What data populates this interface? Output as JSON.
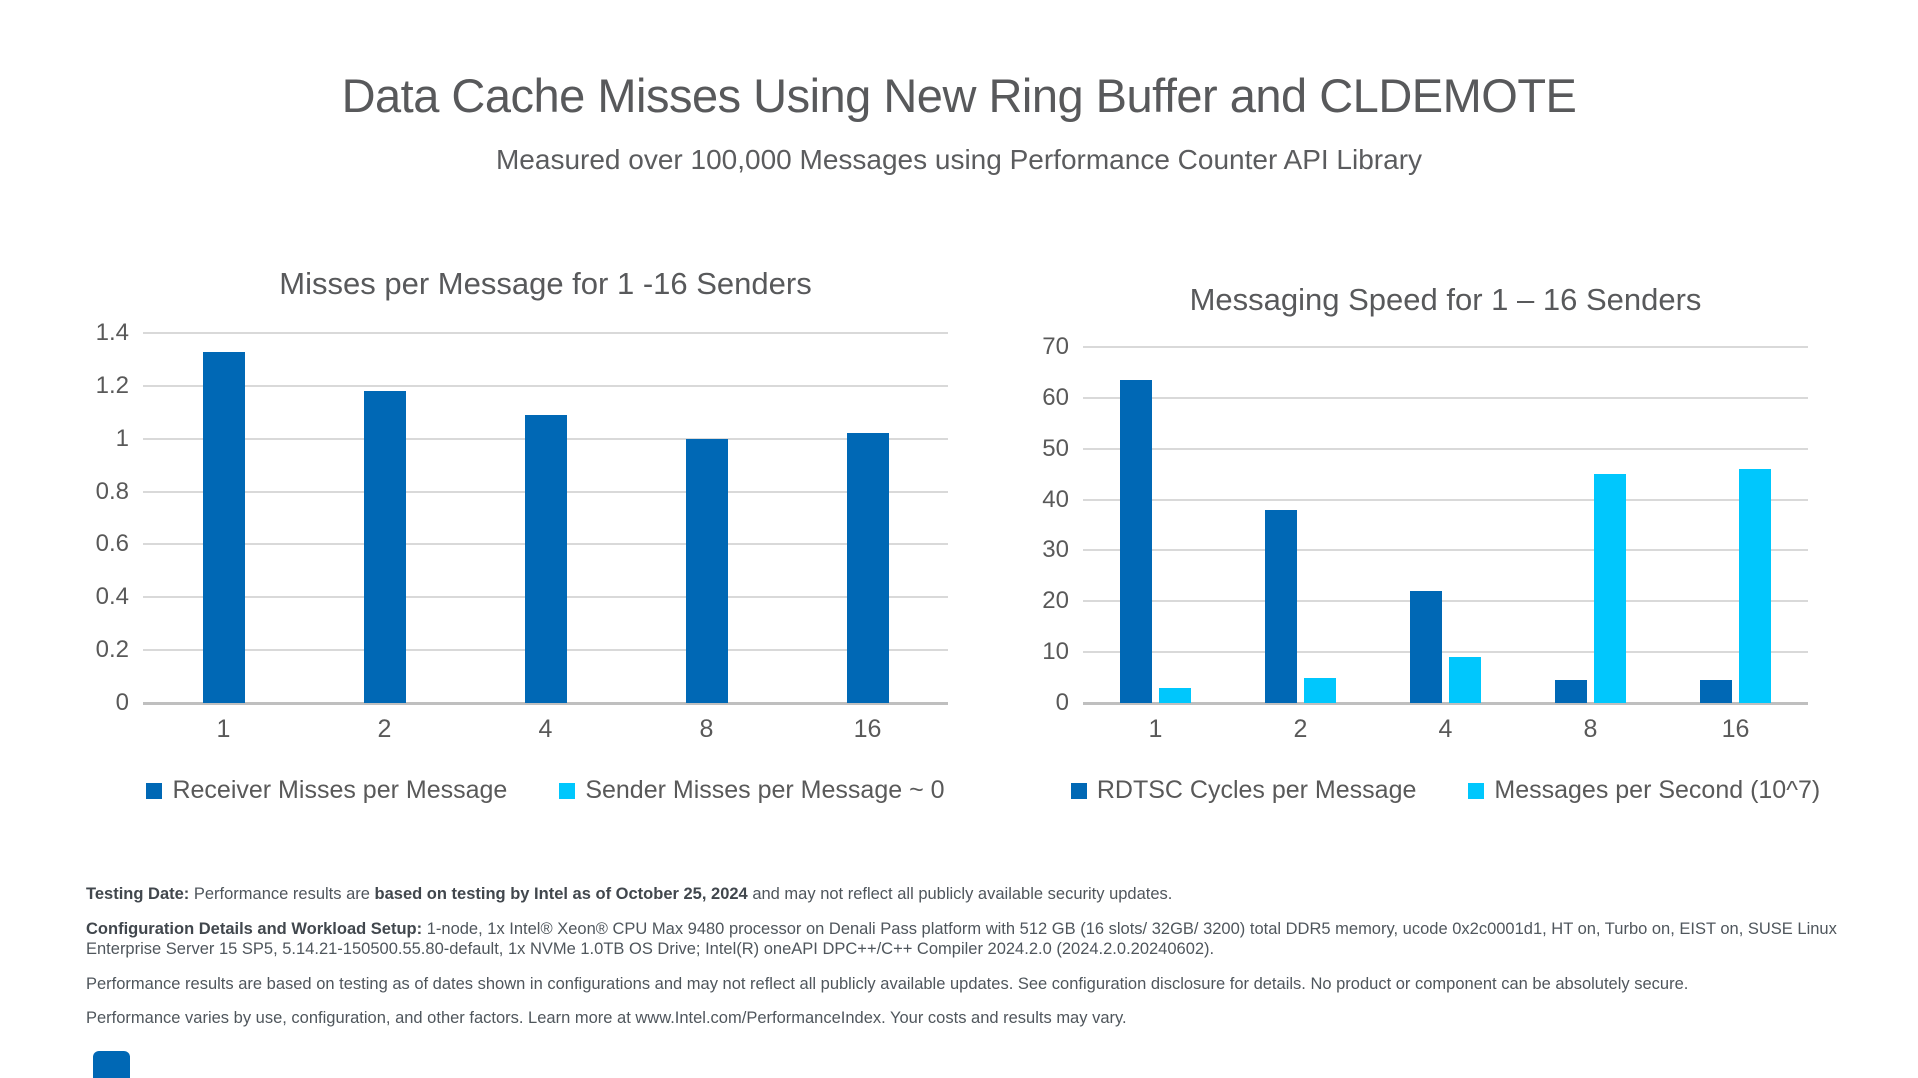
{
  "page": {
    "title": "Data Cache Misses Using New Ring Buffer and CLDEMOTE",
    "subtitle": "Measured over 100,000 Messages using Performance Counter API Library"
  },
  "colors": {
    "series_dark_blue": "#0068B5",
    "series_cyan": "#00C7FD",
    "intel_logo_blue": "#0068B5",
    "heading_gray": "#58595B"
  },
  "chart_data": [
    {
      "type": "bar",
      "title": "Misses per Message for 1 -16 Senders",
      "categories": [
        "1",
        "2",
        "4",
        "8",
        "16"
      ],
      "series": [
        {
          "name": "Receiver Misses per Message",
          "color": "#0068B5",
          "values": [
            1.33,
            1.18,
            1.09,
            1.0,
            1.02
          ]
        },
        {
          "name": "Sender Misses per Message ~ 0",
          "color": "#00C7FD",
          "values": [
            0,
            0,
            0,
            0,
            0
          ]
        }
      ],
      "xlabel": "",
      "ylabel": "",
      "ylim": [
        0,
        1.4
      ],
      "yticks": [
        "1.4",
        "1.2",
        "1",
        "0.8",
        "0.6",
        "0.4",
        "0.2",
        "0"
      ],
      "grid": true,
      "legend_position": "bottom"
    },
    {
      "type": "bar",
      "title": "Messaging Speed for 1 – 16 Senders",
      "categories": [
        "1",
        "2",
        "4",
        "8",
        "16"
      ],
      "series": [
        {
          "name": "RDTSC Cycles per Message",
          "color": "#0068B5",
          "values": [
            63.5,
            38,
            22,
            4.5,
            4.5
          ]
        },
        {
          "name": "Messages per Second (10^7)",
          "color": "#00C7FD",
          "values": [
            3,
            5,
            9,
            45,
            46
          ]
        }
      ],
      "xlabel": "",
      "ylabel": "",
      "ylim": [
        0,
        70
      ],
      "yticks": [
        "70",
        "60",
        "50",
        "40",
        "30",
        "20",
        "10",
        "0"
      ],
      "grid": true,
      "legend_position": "bottom"
    }
  ],
  "footer": {
    "paragraphs": [
      {
        "segments": [
          {
            "text": "Testing Date: ",
            "bold": true
          },
          {
            "text": "Performance results are ",
            "bold": false
          },
          {
            "text": "based on testing by Intel as of October 25, 2024",
            "bold": true
          },
          {
            "text": " and may not reflect all publicly available security updates.",
            "bold": false
          }
        ]
      },
      {
        "segments": [
          {
            "text": "Configuration Details and Workload Setup: ",
            "bold": true
          },
          {
            "text": "1-node, 1x Intel® Xeon® CPU Max 9480 processor on Denali Pass platform with 512 GB (16 slots/ 32GB/ 3200) total DDR5 memory, ucode 0x2c0001d1, HT on, Turbo on, EIST on, SUSE Linux Enterprise Server 15 SP5, 5.14.21-150500.55.80-default, 1x NVMe 1.0TB OS Drive; Intel(R) oneAPI DPC++/C++ Compiler 2024.2.0 (2024.2.0.20240602).",
            "bold": false
          }
        ]
      },
      {
        "segments": [
          {
            "text": "Performance results are based on testing as of dates shown in configurations and may not reflect all publicly available updates. See configuration disclosure for details.  No product or component can be absolutely secure.",
            "bold": false
          }
        ]
      },
      {
        "segments": [
          {
            "text": "Performance varies by use, configuration, and other factors. Learn more at www.Intel.com/PerformanceIndex. Your costs and results may vary.",
            "bold": false
          }
        ]
      }
    ]
  }
}
